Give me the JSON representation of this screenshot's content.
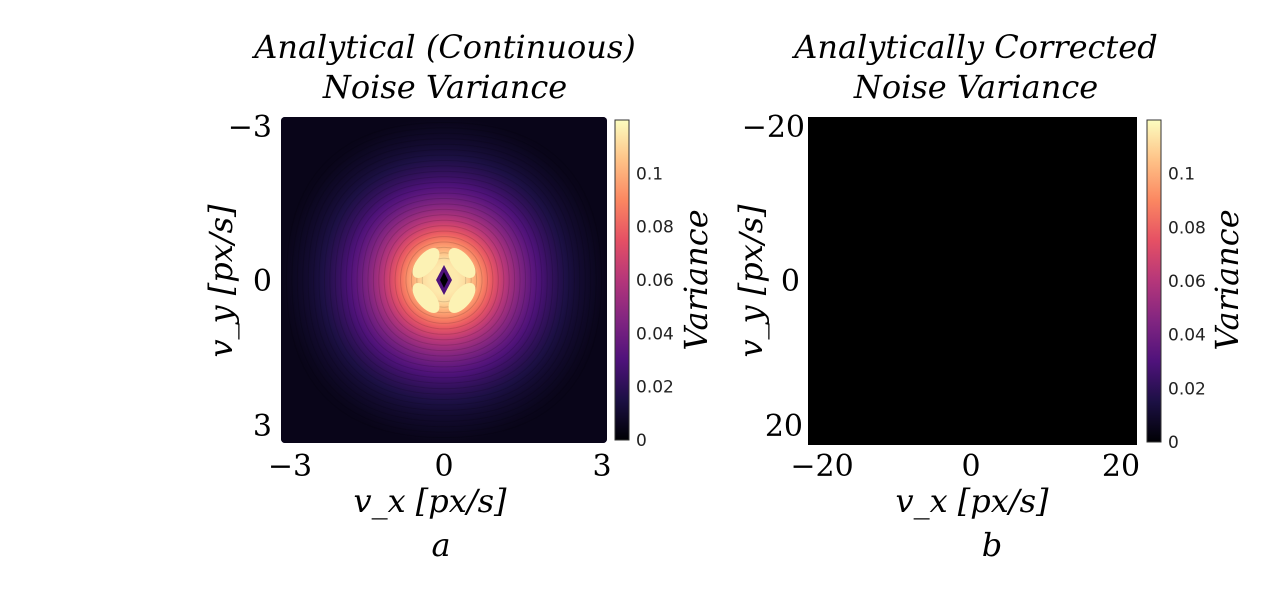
{
  "colors": {
    "cmap": [
      "#000004",
      "#1c1044",
      "#4f127b",
      "#812581",
      "#b5367a",
      "#e55064",
      "#fb8761",
      "#fec287",
      "#fcfdbf"
    ],
    "panel_b_fill": "#000000"
  },
  "chart_data": [
    {
      "type": "heatmap",
      "title_line1": "Analytical (Continuous)",
      "title_line2": "Noise Variance",
      "xlabel": "v_x [px/s]",
      "ylabel": "v_y [px/s]",
      "subcaption": "a",
      "xlim": [
        -3,
        3
      ],
      "ylim": [
        -3,
        3
      ],
      "x_ticks": [
        "−3",
        "0",
        "3"
      ],
      "y_ticks": [
        "−3",
        "0",
        "3"
      ],
      "colorbar_label": "Variance",
      "colorbar_range": [
        0,
        0.12
      ],
      "colorbar_ticks": [
        "0",
        "0.02",
        "0.04",
        "0.06",
        "0.08",
        "0.1"
      ],
      "colorbar_values": [
        0,
        0.02,
        0.04,
        0.06,
        0.08,
        0.1
      ],
      "peak_value": 0.115,
      "peak_radius": 0.3,
      "center_value": 0
    },
    {
      "type": "heatmap",
      "title_line1": "Analytically Corrected",
      "title_line2": "Noise Variance",
      "xlabel": "v_x [px/s]",
      "ylabel": "v_y [px/s]",
      "subcaption": "b",
      "xlim": [
        -20,
        20
      ],
      "ylim": [
        -20,
        20
      ],
      "x_ticks": [
        "−20",
        "0",
        "20"
      ],
      "y_ticks": [
        "−20",
        "0",
        "20"
      ],
      "colorbar_label": "Variance",
      "colorbar_range": [
        0,
        0.12
      ],
      "colorbar_ticks": [
        "0",
        "0.02",
        "0.04",
        "0.06",
        "0.08",
        "0.1"
      ],
      "colorbar_values": [
        0,
        0.02,
        0.04,
        0.06,
        0.08,
        0.1
      ],
      "uniform_value": 0
    }
  ]
}
